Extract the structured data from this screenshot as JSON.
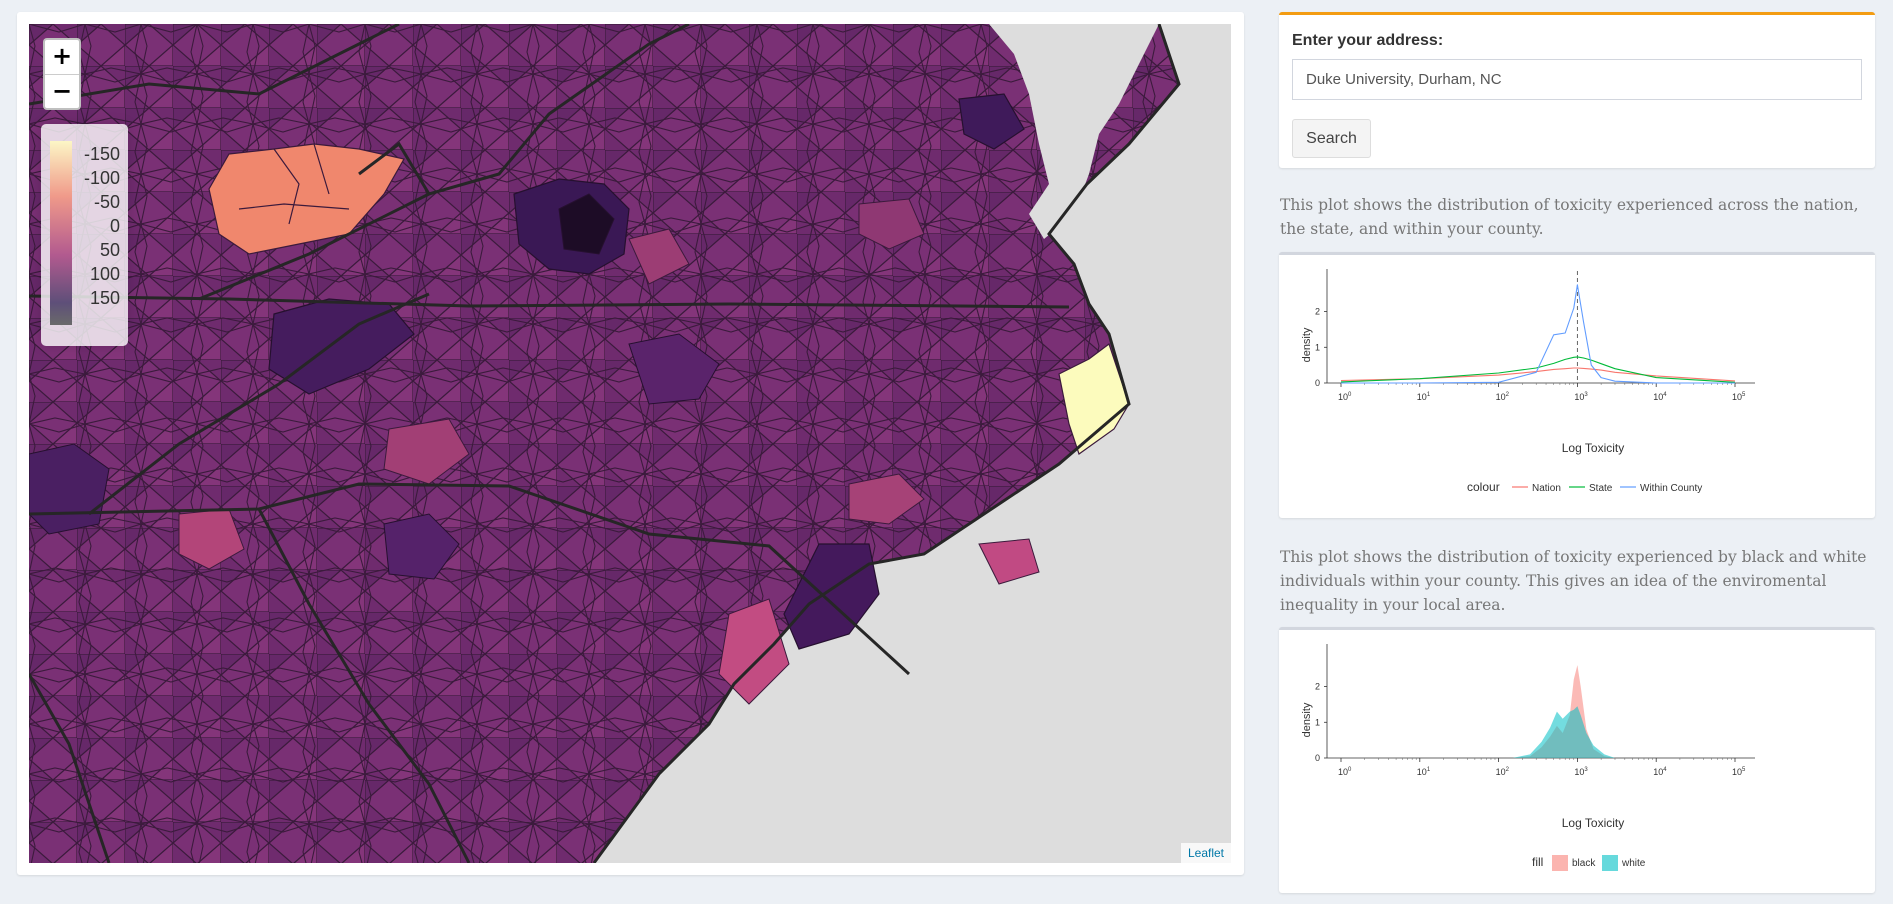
{
  "map": {
    "zoom_in": "+",
    "zoom_out": "−",
    "legend": [
      "-150",
      "-100",
      "-50",
      "0",
      "50",
      "100",
      "150"
    ],
    "attribution": "Leaflet"
  },
  "address": {
    "label": "Enter your address:",
    "value": "Duke University, Durham, NC",
    "button": "Search"
  },
  "plot1": {
    "description": "This plot shows the distribution of toxicity experienced across the nation, the state, and within your county.",
    "xlabel": "Log Toxicity",
    "ylabel": "density",
    "legend_title": "colour",
    "series": [
      {
        "name": "Nation",
        "color": "#f8766d"
      },
      {
        "name": "State",
        "color": "#00ba38"
      },
      {
        "name": "Within County",
        "color": "#619cff"
      }
    ]
  },
  "plot2": {
    "description": "This plot shows the distribution of toxicity experienced by black and white individuals within your county. This gives an idea of the enviromental inequality in your local area.",
    "xlabel": "Log Toxicity",
    "ylabel": "density",
    "legend_title": "fill",
    "series": [
      {
        "name": "black",
        "color": "#f8766d"
      },
      {
        "name": "white",
        "color": "#00bfc4"
      }
    ]
  },
  "axis": {
    "y_ticks": [
      "0",
      "1",
      "2"
    ],
    "x_ticks": [
      "0",
      "1",
      "2",
      "3",
      "4",
      "5"
    ]
  },
  "chart_data": [
    {
      "type": "line",
      "xlabel": "Log Toxicity",
      "ylabel": "density",
      "x_scale": "log10",
      "xlim": [
        1,
        100000
      ],
      "ylim": [
        0,
        2.8
      ],
      "reference_line_x": 1000,
      "x": [
        1,
        10,
        100,
        300,
        500,
        700,
        900,
        1000,
        1200,
        1500,
        2000,
        3000,
        10000,
        100000
      ],
      "series": [
        {
          "name": "Nation",
          "values": [
            0.07,
            0.12,
            0.22,
            0.32,
            0.38,
            0.4,
            0.42,
            0.42,
            0.41,
            0.39,
            0.36,
            0.3,
            0.2,
            0.06
          ]
        },
        {
          "name": "State",
          "values": [
            0.03,
            0.12,
            0.28,
            0.42,
            0.55,
            0.66,
            0.72,
            0.73,
            0.7,
            0.64,
            0.54,
            0.4,
            0.15,
            0.02
          ]
        },
        {
          "name": "Within County",
          "values": [
            0,
            0,
            0.02,
            0.3,
            1.35,
            1.4,
            2.1,
            2.75,
            1.7,
            0.5,
            0.15,
            0.05,
            0,
            0
          ]
        }
      ]
    },
    {
      "type": "area",
      "xlabel": "Log Toxicity",
      "ylabel": "density",
      "x_scale": "log10",
      "xlim": [
        1,
        100000
      ],
      "ylim": [
        0,
        2.8
      ],
      "x": [
        150,
        250,
        350,
        450,
        550,
        650,
        800,
        900,
        1000,
        1100,
        1300,
        1600,
        2200,
        3000
      ],
      "series": [
        {
          "name": "black",
          "values": [
            0,
            0.05,
            0.3,
            0.6,
            0.9,
            0.7,
            1.2,
            2.2,
            2.6,
            2.0,
            0.8,
            0.25,
            0.05,
            0
          ]
        },
        {
          "name": "white",
          "values": [
            0,
            0.1,
            0.45,
            0.85,
            1.3,
            1.1,
            1.3,
            1.35,
            1.45,
            1.2,
            0.7,
            0.35,
            0.1,
            0
          ]
        }
      ]
    }
  ]
}
